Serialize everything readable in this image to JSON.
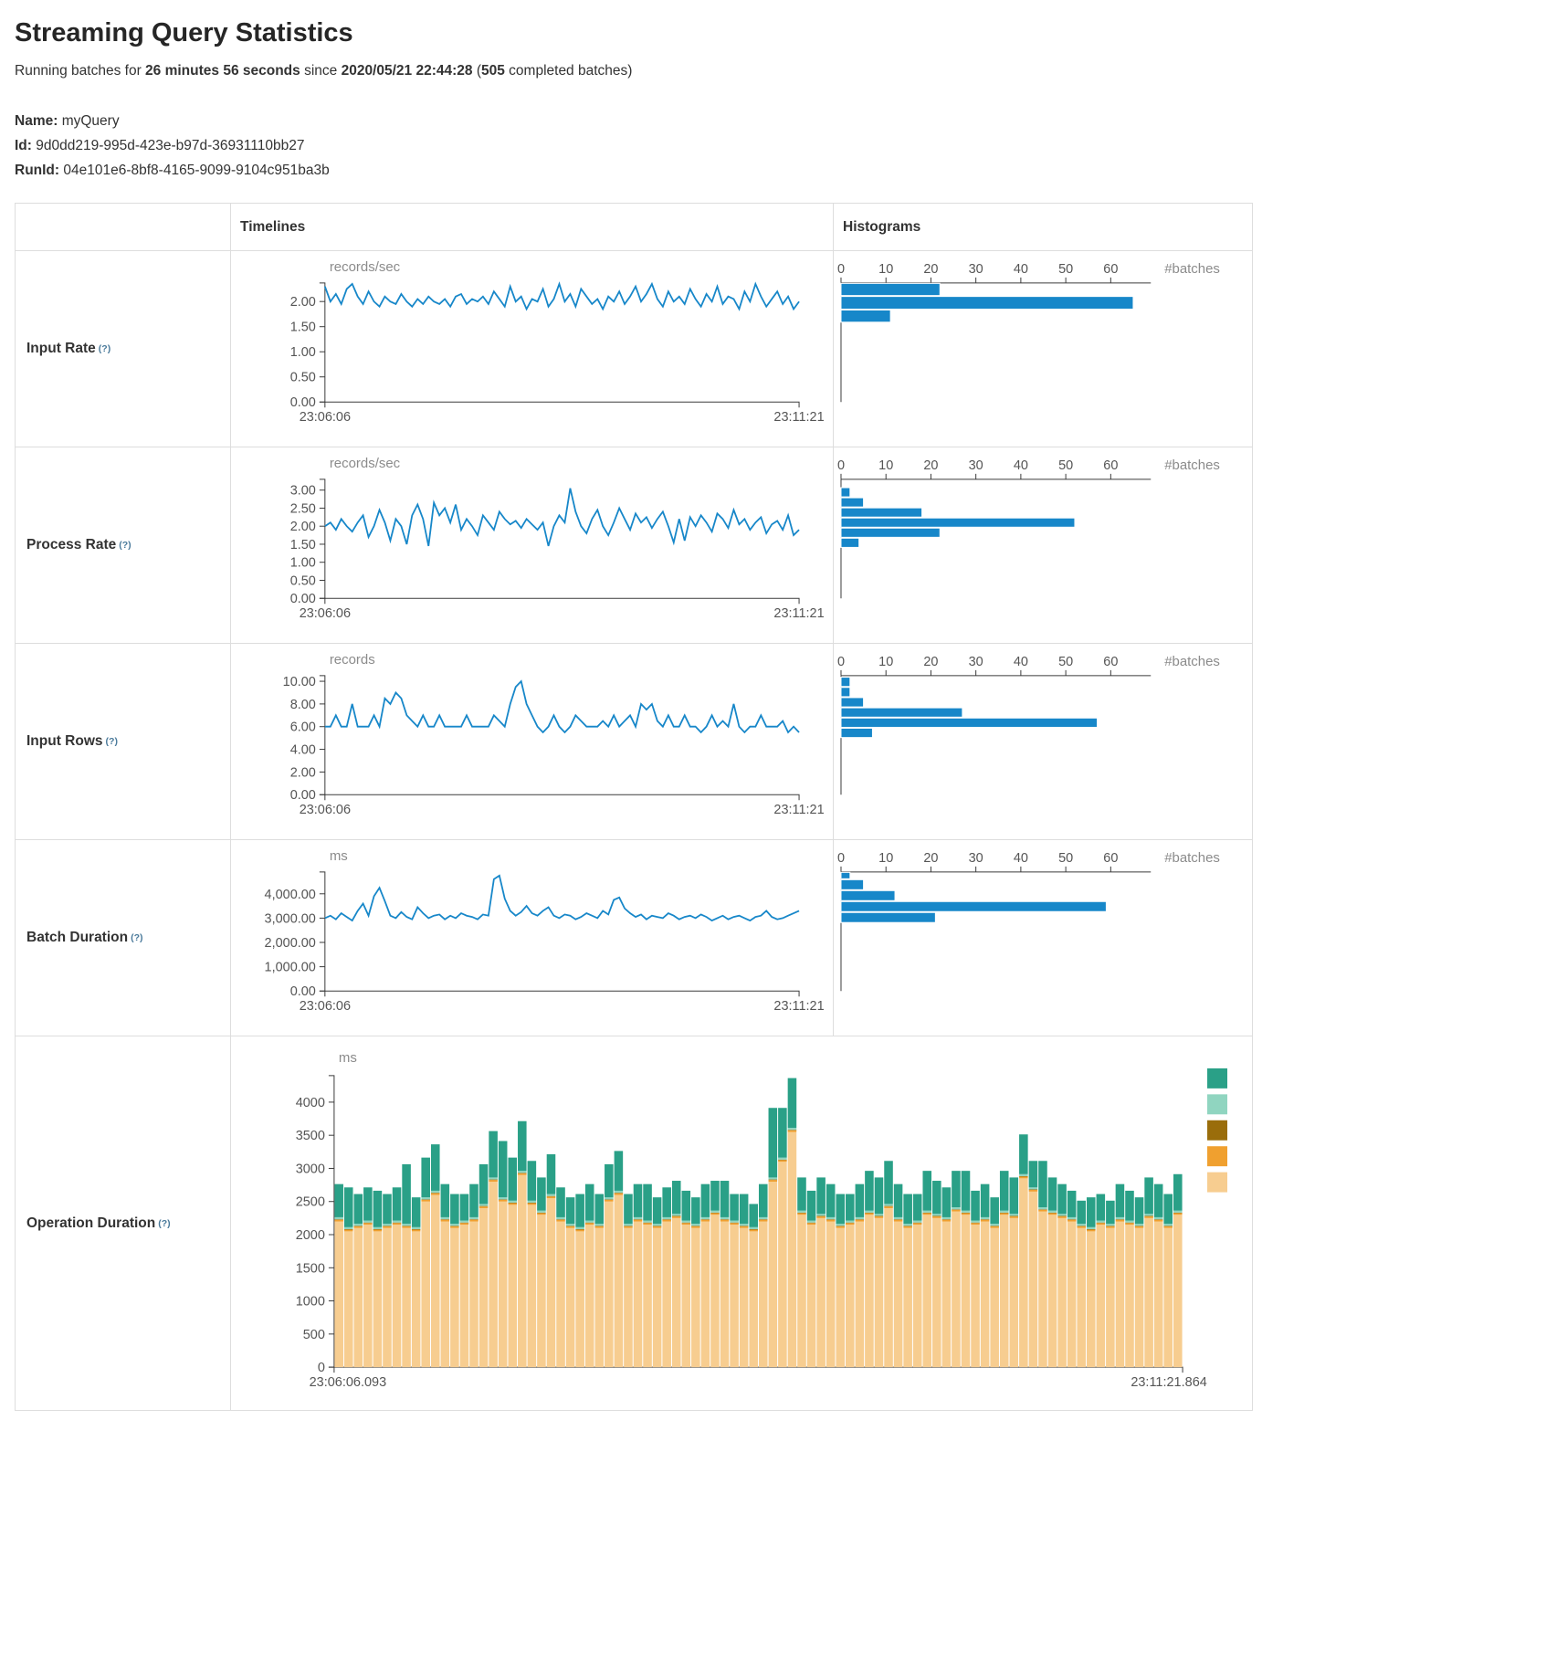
{
  "header": {
    "title": "Streaming Query Statistics",
    "summary": {
      "prefix": "Running batches for ",
      "duration": "26 minutes 56 seconds",
      "mid": " since ",
      "start_time": "2020/05/21 22:44:28",
      "paren_open": " (",
      "completed_batches": "505",
      "suffix": " completed batches)"
    },
    "query": {
      "name_label": "Name:",
      "name": "myQuery",
      "id_label": "Id:",
      "id": "9d0dd219-995d-423e-b97d-36931110bb27",
      "runid_label": "RunId:",
      "runid": "04e101e6-8bf8-4165-9099-9104c951ba3b"
    }
  },
  "table": {
    "col_timelines": "Timelines",
    "col_histograms": "Histograms"
  },
  "colors": {
    "blue": "#1787c9",
    "axis": "#3b3b3b",
    "tick_label": "#555555",
    "unit_label": "#8b8b8b"
  },
  "chart_data": [
    {
      "row_label": "Input Rate",
      "help": "(?)",
      "type": "line",
      "unit": "records/sec",
      "x_start": "23:06:06",
      "x_end": "23:11:21",
      "ylim": [
        0,
        2.37
      ],
      "yticks": [
        {
          "v": 0,
          "label": "0.00"
        },
        {
          "v": 0.5,
          "label": "0.50"
        },
        {
          "v": 1,
          "label": "1.00"
        },
        {
          "v": 1.5,
          "label": "1.50"
        },
        {
          "v": 2,
          "label": "2.00"
        }
      ],
      "values": [
        2.3,
        2.0,
        2.15,
        1.95,
        2.25,
        2.35,
        2.1,
        1.95,
        2.2,
        2.0,
        1.9,
        2.1,
        2.0,
        1.95,
        2.15,
        2.0,
        1.9,
        2.05,
        1.95,
        2.1,
        2.0,
        1.95,
        2.05,
        1.9,
        2.1,
        2.15,
        1.95,
        2.05,
        2.0,
        2.1,
        1.95,
        2.2,
        2.05,
        1.9,
        2.3,
        2.0,
        2.1,
        1.85,
        2.05,
        2.0,
        2.25,
        1.9,
        2.05,
        2.35,
        2.0,
        2.15,
        1.9,
        2.25,
        2.1,
        1.95,
        2.05,
        1.85,
        2.1,
        2.0,
        2.2,
        1.95,
        2.1,
        2.3,
        2.0,
        2.15,
        2.35,
        2.05,
        1.9,
        2.2,
        2.0,
        2.1,
        1.95,
        2.25,
        2.05,
        1.9,
        2.15,
        2.0,
        2.3,
        1.95,
        2.1,
        2.05,
        1.85,
        2.2,
        2.0,
        2.35,
        2.1,
        1.9,
        2.05,
        2.2,
        1.95,
        2.1,
        1.85,
        2.0
      ],
      "histogram": {
        "xlabel": "#batches",
        "xticks": [
          0,
          10,
          20,
          30,
          40,
          50,
          60
        ],
        "xmax": 67,
        "bins": [
          {
            "y0": 1.58,
            "y1": 1.84,
            "count": 11
          },
          {
            "y0": 1.84,
            "y1": 2.11,
            "count": 65
          },
          {
            "y0": 2.11,
            "y1": 2.37,
            "count": 22
          }
        ]
      }
    },
    {
      "row_label": "Process Rate",
      "help": "(?)",
      "type": "line",
      "unit": "records/sec",
      "x_start": "23:06:06",
      "x_end": "23:11:21",
      "ylim": [
        0,
        3.3
      ],
      "yticks": [
        {
          "v": 0,
          "label": "0.00"
        },
        {
          "v": 0.5,
          "label": "0.50"
        },
        {
          "v": 1,
          "label": "1.00"
        },
        {
          "v": 1.5,
          "label": "1.50"
        },
        {
          "v": 2,
          "label": "2.00"
        },
        {
          "v": 2.5,
          "label": "2.50"
        },
        {
          "v": 3,
          "label": "3.00"
        }
      ],
      "values": [
        2.0,
        2.1,
        1.9,
        2.2,
        2.0,
        1.85,
        2.1,
        2.3,
        1.7,
        2.0,
        2.45,
        2.1,
        1.6,
        2.2,
        2.0,
        1.5,
        2.3,
        2.6,
        2.2,
        1.45,
        2.65,
        2.3,
        2.5,
        2.1,
        2.6,
        1.9,
        2.2,
        2.0,
        1.75,
        2.3,
        2.1,
        1.9,
        2.4,
        2.2,
        2.05,
        2.15,
        1.95,
        2.2,
        2.05,
        1.9,
        2.1,
        1.45,
        2.0,
        2.3,
        2.1,
        3.05,
        2.4,
        2.0,
        1.8,
        2.2,
        2.45,
        2.0,
        1.75,
        2.1,
        2.5,
        2.2,
        1.9,
        2.35,
        2.1,
        2.25,
        1.95,
        2.2,
        2.4,
        2.0,
        1.55,
        2.2,
        1.6,
        2.25,
        2.0,
        2.3,
        2.1,
        1.85,
        2.35,
        2.2,
        1.95,
        2.45,
        2.05,
        2.2,
        1.9,
        2.1,
        2.25,
        1.8,
        2.05,
        2.15,
        1.9,
        2.3,
        1.75,
        1.9
      ],
      "histogram": {
        "xlabel": "#batches",
        "xticks": [
          0,
          10,
          20,
          30,
          40,
          50,
          60
        ],
        "xmax": 67,
        "bins": [
          {
            "y0": 1.4,
            "y1": 1.68,
            "count": 4
          },
          {
            "y0": 1.68,
            "y1": 1.96,
            "count": 22
          },
          {
            "y0": 1.96,
            "y1": 2.24,
            "count": 52
          },
          {
            "y0": 2.24,
            "y1": 2.52,
            "count": 18
          },
          {
            "y0": 2.52,
            "y1": 2.8,
            "count": 5
          },
          {
            "y0": 2.8,
            "y1": 3.08,
            "count": 2
          }
        ]
      }
    },
    {
      "row_label": "Input Rows",
      "help": "(?)",
      "type": "line",
      "unit": "records",
      "x_start": "23:06:06",
      "x_end": "23:11:21",
      "ylim": [
        0,
        10.5
      ],
      "yticks": [
        {
          "v": 0,
          "label": "0.00"
        },
        {
          "v": 2,
          "label": "2.00"
        },
        {
          "v": 4,
          "label": "4.00"
        },
        {
          "v": 6,
          "label": "6.00"
        },
        {
          "v": 8,
          "label": "8.00"
        },
        {
          "v": 10,
          "label": "10.00"
        }
      ],
      "values": [
        6,
        6,
        7,
        6,
        6,
        8,
        6,
        6,
        6,
        7,
        6,
        8.5,
        8,
        9,
        8.5,
        7,
        6.5,
        6,
        7,
        6,
        6,
        7,
        6,
        6,
        6,
        6,
        7,
        6,
        6,
        6,
        6,
        7,
        6.5,
        6,
        8,
        9.5,
        10,
        8,
        7,
        6,
        5.5,
        6,
        7,
        6,
        5.5,
        6,
        7,
        6.5,
        6,
        6,
        6,
        6.5,
        6,
        7,
        6,
        6.5,
        7,
        6,
        8,
        7.5,
        8,
        6.5,
        6,
        7,
        6,
        6,
        7,
        6,
        6,
        5.5,
        6,
        7,
        6,
        6.5,
        6,
        8,
        6,
        5.5,
        6,
        6,
        7,
        6,
        6,
        6,
        6.5,
        5.5,
        6,
        5.5
      ],
      "histogram": {
        "xlabel": "#batches",
        "xticks": [
          0,
          10,
          20,
          30,
          40,
          50,
          60
        ],
        "xmax": 67,
        "bins": [
          {
            "y0": 5.0,
            "y1": 5.9,
            "count": 7
          },
          {
            "y0": 5.9,
            "y1": 6.8,
            "count": 57
          },
          {
            "y0": 6.8,
            "y1": 7.7,
            "count": 27
          },
          {
            "y0": 7.7,
            "y1": 8.6,
            "count": 5
          },
          {
            "y0": 8.6,
            "y1": 9.5,
            "count": 2
          },
          {
            "y0": 9.5,
            "y1": 10.4,
            "count": 2
          }
        ]
      }
    },
    {
      "row_label": "Batch Duration",
      "help": "(?)",
      "type": "line",
      "unit": "ms",
      "x_start": "23:06:06",
      "x_end": "23:11:21",
      "ylim": [
        0,
        4900
      ],
      "yticks": [
        {
          "v": 0,
          "label": "0.00"
        },
        {
          "v": 1000,
          "label": "1,000.00"
        },
        {
          "v": 2000,
          "label": "2,000.00"
        },
        {
          "v": 3000,
          "label": "3,000.00"
        },
        {
          "v": 4000,
          "label": "4,000.00"
        }
      ],
      "values": [
        3000,
        3100,
        2950,
        3200,
        3050,
        2900,
        3300,
        3600,
        3100,
        3900,
        4250,
        3700,
        3100,
        3000,
        3250,
        3050,
        2950,
        3450,
        3200,
        3000,
        3100,
        3150,
        2950,
        3100,
        3000,
        3200,
        3100,
        3050,
        2950,
        3150,
        3100,
        4600,
        4750,
        3800,
        3300,
        3100,
        3250,
        3500,
        3200,
        3100,
        3300,
        3450,
        3100,
        3000,
        3150,
        3100,
        2950,
        3050,
        3200,
        3100,
        3000,
        3300,
        3150,
        3750,
        3850,
        3400,
        3200,
        3050,
        3150,
        2950,
        3100,
        3050,
        3000,
        3200,
        3100,
        2950,
        3050,
        3100,
        3000,
        3150,
        3050,
        2900,
        3000,
        3100,
        2950,
        3050,
        3100,
        3000,
        2900,
        3050,
        3100,
        3300,
        3050,
        2950,
        3000,
        3100,
        3200,
        3300
      ],
      "histogram": {
        "xlabel": "#batches",
        "xticks": [
          0,
          10,
          20,
          30,
          40,
          50,
          60
        ],
        "xmax": 67,
        "bins": [
          {
            "y0": 2800,
            "y1": 3250,
            "count": 21
          },
          {
            "y0": 3250,
            "y1": 3700,
            "count": 59
          },
          {
            "y0": 3700,
            "y1": 4150,
            "count": 12
          },
          {
            "y0": 4150,
            "y1": 4600,
            "count": 5
          },
          {
            "y0": 4600,
            "y1": 4900,
            "count": 2
          }
        ]
      }
    },
    {
      "row_label": "Operation Duration",
      "help": "(?)",
      "type": "stacked-bar",
      "unit": "ms",
      "x_start": "23:06:06.093",
      "x_end": "23:11:21.864",
      "ylim": [
        0,
        4400
      ],
      "yticks": [
        {
          "v": 0,
          "label": "0"
        },
        {
          "v": 500,
          "label": "500"
        },
        {
          "v": 1000,
          "label": "1000"
        },
        {
          "v": 1500,
          "label": "1500"
        },
        {
          "v": 2000,
          "label": "2000"
        },
        {
          "v": 2500,
          "label": "2500"
        },
        {
          "v": 3000,
          "label": "3000"
        },
        {
          "v": 3500,
          "label": "3500"
        },
        {
          "v": 4000,
          "label": "4000"
        }
      ],
      "series": [
        {
          "name": "tan",
          "color": "#f7cd90",
          "values": [
            2200,
            2050,
            2100,
            2150,
            2050,
            2100,
            2150,
            2100,
            2050,
            2500,
            2600,
            2200,
            2100,
            2150,
            2200,
            2400,
            2800,
            2500,
            2450,
            2900,
            2450,
            2300,
            2550,
            2200,
            2100,
            2050,
            2150,
            2100,
            2500,
            2600,
            2100,
            2200,
            2150,
            2100,
            2200,
            2250,
            2150,
            2100,
            2200,
            2300,
            2200,
            2150,
            2100,
            2050,
            2200,
            2800,
            3100,
            3550,
            2300,
            2150,
            2250,
            2200,
            2100,
            2150,
            2200,
            2300,
            2250,
            2400,
            2200,
            2100,
            2150,
            2300,
            2250,
            2200,
            2350,
            2300,
            2150,
            2200,
            2100,
            2300,
            2250,
            2850,
            2650,
            2350,
            2300,
            2250,
            2200,
            2100,
            2050,
            2150,
            2100,
            2200,
            2150,
            2100,
            2250,
            2200,
            2100,
            2300
          ]
        },
        {
          "name": "orange",
          "color": "#f0a02f",
          "value": 25
        },
        {
          "name": "dark-gold",
          "color": "#9a6d0b",
          "value": 8
        },
        {
          "name": "light-teal",
          "color": "#90d5c0",
          "value": 30
        },
        {
          "name": "teal",
          "color": "#2aa087",
          "values": [
            500,
            600,
            450,
            500,
            550,
            450,
            500,
            900,
            450,
            600,
            700,
            500,
            450,
            400,
            500,
            600,
            700,
            850,
            650,
            750,
            600,
            500,
            600,
            450,
            400,
            500,
            550,
            450,
            500,
            600,
            450,
            500,
            550,
            400,
            450,
            500,
            450,
            400,
            500,
            450,
            550,
            400,
            450,
            350,
            500,
            1050,
            750,
            750,
            500,
            450,
            550,
            500,
            450,
            400,
            500,
            600,
            550,
            650,
            500,
            450,
            400,
            600,
            500,
            450,
            550,
            600,
            450,
            500,
            400,
            600,
            550,
            600,
            400,
            700,
            500,
            450,
            400,
            350,
            450,
            400,
            350,
            500,
            450,
            400,
            550,
            500,
            450,
            550
          ]
        }
      ]
    }
  ]
}
